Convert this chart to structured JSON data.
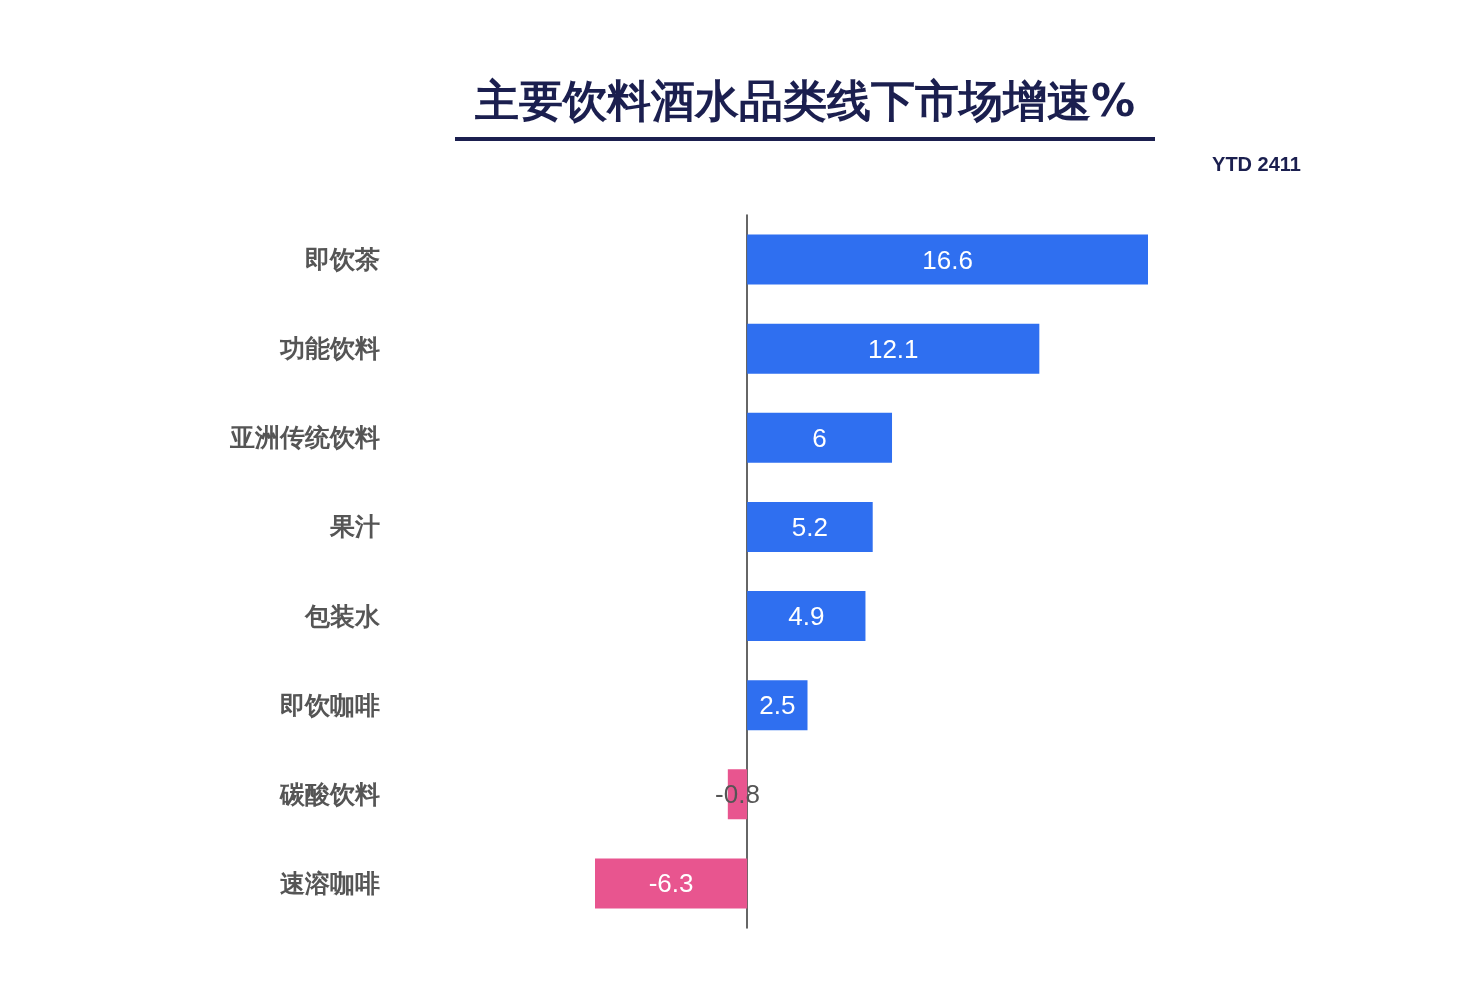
{
  "chart_data": {
    "type": "bar",
    "orientation": "horizontal",
    "title": "主要饮料酒水品类线下市场增速%",
    "subtitle": "YTD 2411",
    "categories": [
      "即饮茶",
      "功能饮料",
      "亚洲传统饮料",
      "果汁",
      "包装水",
      "即饮咖啡",
      "碳酸饮料",
      "速溶咖啡"
    ],
    "values": [
      16.6,
      12.1,
      6,
      5.2,
      4.9,
      2.5,
      -0.8,
      -6.3
    ],
    "colors": [
      "#2f6ff0",
      "#2f6ff0",
      "#2f6ff0",
      "#2f6ff0",
      "#2f6ff0",
      "#2f6ff0",
      "#e8558f",
      "#e8558f"
    ],
    "data_labels": true
  }
}
